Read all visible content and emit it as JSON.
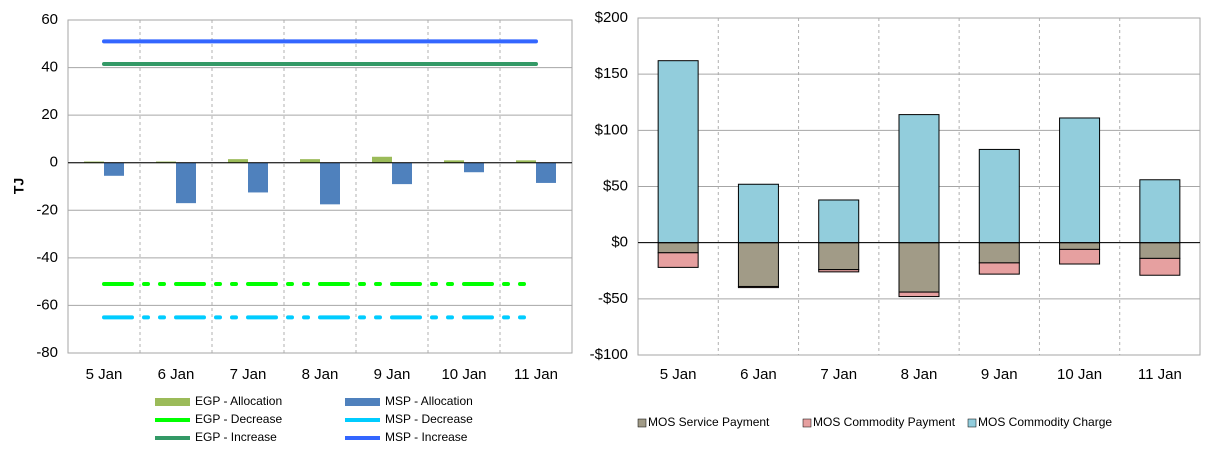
{
  "chart_data": [
    {
      "type": "bar",
      "stacked": false,
      "ylabel": "TJ",
      "categories": [
        "5 Jan",
        "6 Jan",
        "7 Jan",
        "8 Jan",
        "9 Jan",
        "10 Jan",
        "11 Jan"
      ],
      "ylim": [
        -80,
        60
      ],
      "yticks": [
        -80,
        -60,
        -40,
        -20,
        0,
        20,
        40,
        60
      ],
      "grid": true,
      "series": [
        {
          "name": "EGP - Allocation",
          "style": "bar",
          "color": "#9bbb59",
          "values": [
            0.5,
            0.5,
            1.5,
            1.5,
            2.5,
            1,
            1
          ]
        },
        {
          "name": "EGP - Decrease",
          "style": "line",
          "dash": "dash-dot-dot",
          "color": "#00ff00",
          "values": [
            -51,
            -51,
            -51,
            -51,
            -51,
            -51,
            -51
          ]
        },
        {
          "name": "EGP - Increase",
          "style": "line",
          "dash": "solid",
          "color": "#339966",
          "values": [
            41.5,
            41.5,
            41.5,
            41.5,
            41.5,
            41.5,
            41.5
          ]
        },
        {
          "name": "MSP - Allocation",
          "style": "bar",
          "color": "#4f81bd",
          "values": [
            -5.5,
            -17,
            -12.5,
            -17.5,
            -9,
            -4,
            -8.5
          ]
        },
        {
          "name": "MSP - Decrease",
          "style": "line",
          "dash": "dash-dot-dot",
          "color": "#00ccff",
          "values": [
            -65,
            -65,
            -65,
            -65,
            -65,
            -65,
            -65
          ]
        },
        {
          "name": "MSP - Increase",
          "style": "line",
          "dash": "solid",
          "color": "#3366ff",
          "values": [
            51,
            51,
            51,
            51,
            51,
            51,
            51
          ]
        }
      ]
    },
    {
      "type": "bar",
      "stacked": true,
      "categories": [
        "5 Jan",
        "6 Jan",
        "7 Jan",
        "8 Jan",
        "9 Jan",
        "10 Jan",
        "11 Jan"
      ],
      "ylim": [
        -100,
        200
      ],
      "yticks": [
        {
          "value": -100,
          "label": "-$100"
        },
        {
          "value": -50,
          "label": "-$50"
        },
        {
          "value": 0,
          "label": "$0"
        },
        {
          "value": 50,
          "label": "$50"
        },
        {
          "value": 100,
          "label": "$100"
        },
        {
          "value": 150,
          "label": "$150"
        },
        {
          "value": 200,
          "label": "$200"
        }
      ],
      "grid": true,
      "series": [
        {
          "name": "MOS Service Payment",
          "style": "bar",
          "color": "#a19b87",
          "values": [
            -9,
            -39,
            -24,
            -44,
            -18,
            -6,
            -14
          ]
        },
        {
          "name": "MOS Commodity Payment",
          "style": "bar",
          "color": "#e6a0a0",
          "values": [
            -13,
            -1,
            -2,
            -4,
            -10,
            -13,
            -15
          ]
        },
        {
          "name": "MOS Commodity Charge",
          "style": "bar",
          "color": "#92cddc",
          "values": [
            162,
            52,
            38,
            114,
            83,
            111,
            56
          ]
        }
      ]
    }
  ]
}
